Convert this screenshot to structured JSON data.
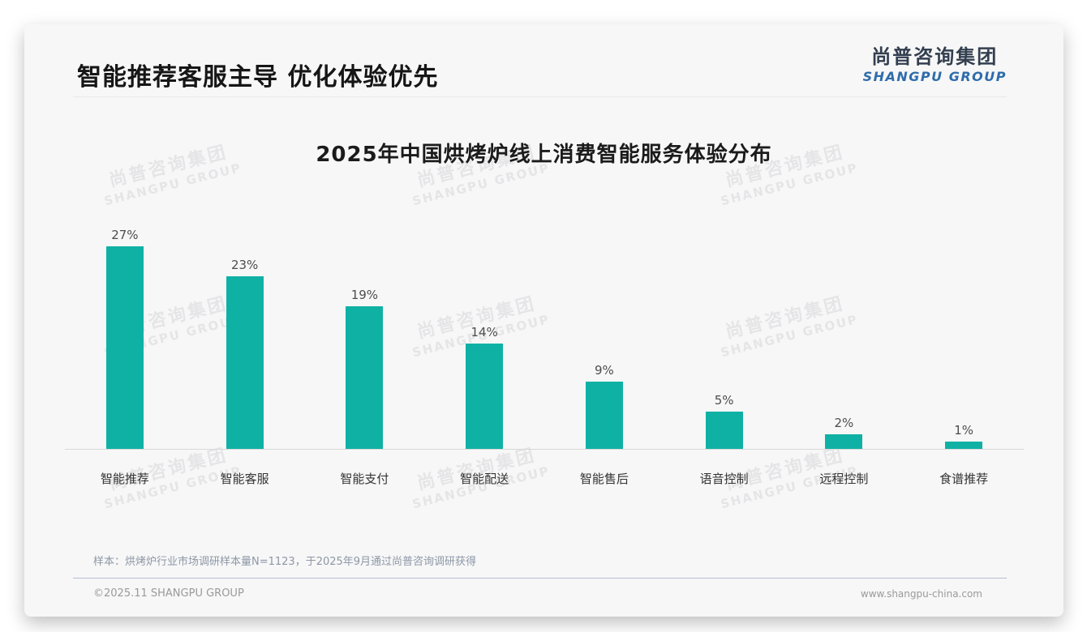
{
  "page": {
    "title": "智能推荐客服主导 优化体验优先",
    "logo": {
      "cn": "尚普咨询集团",
      "en": "SHANGPU GROUP"
    },
    "watermark": {
      "cn": "尚普咨询集团",
      "en": "SHANGPU GROUP"
    },
    "footnote": "样本：烘烤炉行业市场调研样本量N=1123，于2025年9月通过尚普咨询调研获得",
    "footer": {
      "left": "©2025.11 SHANGPU GROUP",
      "right": "www.shangpu-china.com"
    }
  },
  "colors": {
    "bar": "#0fb1a5",
    "logo_cn": "#333f50",
    "logo_en": "#2d6cab",
    "card_bg": "#f7f7f7"
  },
  "chart_data": {
    "type": "bar",
    "title": "2025年中国烘烤炉线上消费智能服务体验分布",
    "categories": [
      "智能推荐",
      "智能客服",
      "智能支付",
      "智能配送",
      "智能售后",
      "语音控制",
      "远程控制",
      "食谱推荐"
    ],
    "values": [
      27,
      23,
      19,
      14,
      9,
      5,
      2,
      1
    ],
    "data_labels": [
      "27%",
      "23%",
      "19%",
      "14%",
      "9%",
      "5%",
      "2%",
      "1%"
    ],
    "unit": "%",
    "xlabel": "",
    "ylabel": "",
    "ylim": [
      0,
      30
    ],
    "grid": false,
    "legend": false,
    "bar_color": "#0fb1a5"
  }
}
